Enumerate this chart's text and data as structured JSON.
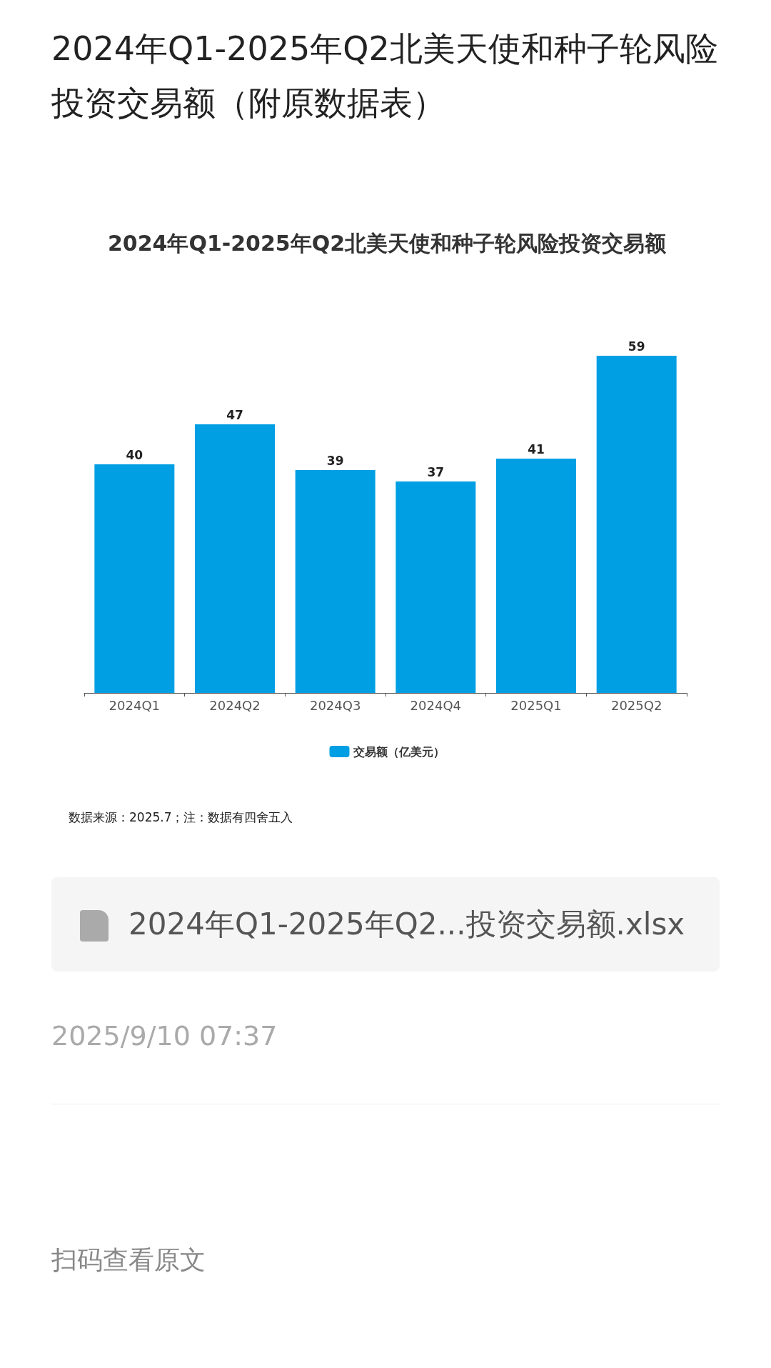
{
  "chart_data": {
    "type": "bar",
    "title": "2024年Q1-2025年Q2北美天使和种子轮风险投资交易额（附原数据表）",
    "subtitle": "2024年Q1-2025年Q2北美天使和种子轮风险投资交易额",
    "categories": [
      "2024Q1",
      "2024Q2",
      "2024Q3",
      "2024Q4",
      "2025Q1",
      "2025Q2"
    ],
    "series": [
      {
        "name": "交易额（亿美元）",
        "color": "#009fe3",
        "values": [
          40,
          47,
          39,
          37,
          41,
          59
        ]
      }
    ],
    "data_labels": true,
    "legend": "bottom",
    "grid": false,
    "annotations": [
      "数据来源：2025.7；注：数据有四舍五入",
      "2024年Q1-2025年Q2...投资交易额.xlsx",
      "2025/9/10 07:37",
      "扫码查看原文"
    ]
  }
}
